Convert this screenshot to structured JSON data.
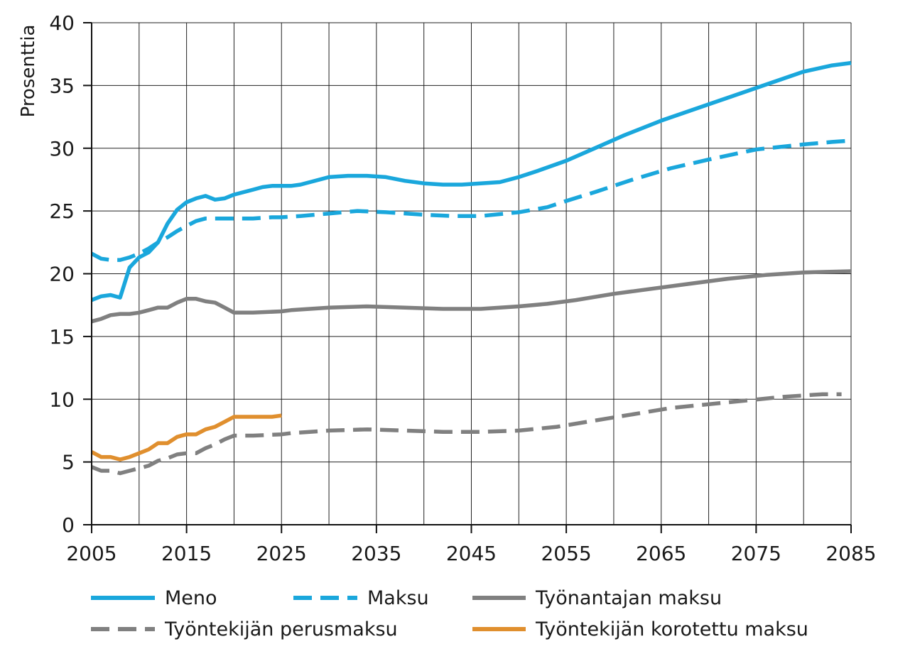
{
  "chart_data": {
    "type": "line",
    "title": "",
    "xlabel": "",
    "ylabel": "Prosenttia",
    "xlim": [
      2005,
      2085
    ],
    "ylim": [
      0,
      40
    ],
    "x_ticks": [
      "2005",
      "2015",
      "2025",
      "2035",
      "2045",
      "2055",
      "2065",
      "2075",
      "2085"
    ],
    "y_ticks": [
      "0",
      "5",
      "10",
      "15",
      "20",
      "25",
      "30",
      "35",
      "40"
    ],
    "grid": true,
    "legend_position": "bottom",
    "series": [
      {
        "name": "Meno",
        "color": "#1aa7dc",
        "style": "solid",
        "x": [
          2005,
          2006,
          2007,
          2008,
          2009,
          2010,
          2011,
          2012,
          2013,
          2014,
          2015,
          2016,
          2017,
          2018,
          2019,
          2020,
          2021,
          2022,
          2023,
          2024,
          2025,
          2026,
          2027,
          2028,
          2030,
          2032,
          2034,
          2036,
          2038,
          2040,
          2042,
          2044,
          2046,
          2048,
          2050,
          2052,
          2055,
          2058,
          2061,
          2065,
          2070,
          2075,
          2080,
          2083,
          2085
        ],
        "y": [
          17.9,
          18.2,
          18.3,
          18.1,
          20.5,
          21.3,
          21.7,
          22.5,
          24.0,
          25.1,
          25.7,
          26.0,
          26.2,
          25.9,
          26.0,
          26.3,
          26.5,
          26.7,
          26.9,
          27.0,
          27.0,
          27.0,
          27.1,
          27.3,
          27.7,
          27.8,
          27.8,
          27.7,
          27.4,
          27.2,
          27.1,
          27.1,
          27.2,
          27.3,
          27.7,
          28.2,
          29.0,
          30.0,
          31.0,
          32.2,
          33.5,
          34.8,
          36.1,
          36.6,
          36.8
        ]
      },
      {
        "name": "Maksu",
        "color": "#1aa7dc",
        "style": "dashed",
        "x": [
          2005,
          2006,
          2007,
          2008,
          2009,
          2010,
          2011,
          2012,
          2013,
          2014,
          2015,
          2016,
          2017,
          2018,
          2019,
          2020,
          2022,
          2024,
          2025,
          2027,
          2030,
          2033,
          2036,
          2040,
          2043,
          2046,
          2050,
          2053,
          2055,
          2058,
          2062,
          2066,
          2070,
          2075,
          2080,
          2083,
          2085
        ],
        "y": [
          21.6,
          21.2,
          21.1,
          21.1,
          21.3,
          21.6,
          22.0,
          22.5,
          22.9,
          23.4,
          23.8,
          24.2,
          24.4,
          24.4,
          24.4,
          24.4,
          24.4,
          24.5,
          24.5,
          24.6,
          24.8,
          25.0,
          24.9,
          24.7,
          24.6,
          24.6,
          24.9,
          25.3,
          25.8,
          26.5,
          27.5,
          28.4,
          29.1,
          29.9,
          30.3,
          30.5,
          30.6
        ]
      },
      {
        "name": "Työnantajan maksu",
        "color": "#808080",
        "style": "solid",
        "x": [
          2005,
          2006,
          2007,
          2008,
          2009,
          2010,
          2011,
          2012,
          2013,
          2014,
          2015,
          2016,
          2017,
          2018,
          2019,
          2020,
          2022,
          2025,
          2026,
          2028,
          2030,
          2034,
          2038,
          2042,
          2046,
          2050,
          2053,
          2056,
          2060,
          2064,
          2068,
          2072,
          2076,
          2080,
          2085
        ],
        "y": [
          16.2,
          16.4,
          16.7,
          16.8,
          16.8,
          16.9,
          17.1,
          17.3,
          17.3,
          17.7,
          18.0,
          18.0,
          17.8,
          17.7,
          17.3,
          16.9,
          16.9,
          17.0,
          17.1,
          17.2,
          17.3,
          17.4,
          17.3,
          17.2,
          17.2,
          17.4,
          17.6,
          17.9,
          18.4,
          18.8,
          19.2,
          19.6,
          19.9,
          20.1,
          20.2
        ]
      },
      {
        "name": "Työntekijän perusmaksu",
        "color": "#808080",
        "style": "dashed",
        "x": [
          2005,
          2006,
          2007,
          2008,
          2009,
          2010,
          2011,
          2012,
          2013,
          2014,
          2015,
          2016,
          2017,
          2018,
          2019,
          2020,
          2022,
          2025,
          2026,
          2028,
          2030,
          2034,
          2038,
          2042,
          2046,
          2050,
          2054,
          2058,
          2062,
          2066,
          2070,
          2074,
          2078,
          2082,
          2084
        ],
        "y": [
          4.6,
          4.3,
          4.3,
          4.1,
          4.3,
          4.5,
          4.7,
          5.1,
          5.3,
          5.6,
          5.7,
          5.7,
          6.1,
          6.4,
          6.8,
          7.1,
          7.1,
          7.2,
          7.3,
          7.4,
          7.5,
          7.6,
          7.5,
          7.4,
          7.4,
          7.5,
          7.8,
          8.3,
          8.8,
          9.3,
          9.6,
          9.9,
          10.2,
          10.4,
          10.4
        ]
      },
      {
        "name": "Työntekijän korotettu maksu",
        "color": "#e08f2e",
        "style": "solid",
        "x": [
          2005,
          2006,
          2007,
          2008,
          2009,
          2010,
          2011,
          2012,
          2013,
          2014,
          2015,
          2016,
          2017,
          2018,
          2019,
          2020,
          2022,
          2024,
          2025
        ],
        "y": [
          5.8,
          5.4,
          5.4,
          5.2,
          5.4,
          5.7,
          6.0,
          6.5,
          6.5,
          7.0,
          7.2,
          7.2,
          7.6,
          7.8,
          8.2,
          8.6,
          8.6,
          8.6,
          8.7
        ]
      }
    ]
  }
}
